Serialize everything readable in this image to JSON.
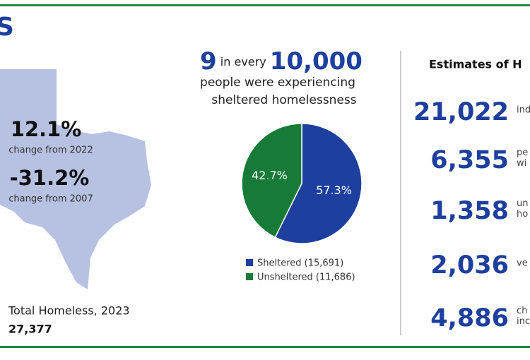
{
  "title": "S",
  "map_stats": [
    {
      "value": "12.1%",
      "label": "change from 2022"
    },
    {
      "value": "-31.2%",
      "label": "change from 2007"
    }
  ],
  "total": {
    "label": "Total Homeless, 2023",
    "value": "27,377"
  },
  "rate": {
    "number": "9",
    "middle": "in every",
    "base": "10,000",
    "line1": "people were experiencing",
    "line2": "sheltered homelessness"
  },
  "chart_data": {
    "type": "pie",
    "categories": [
      "Sheltered (15,691)",
      "Unsheltered (11,686)"
    ],
    "values": [
      57.3,
      42.7
    ],
    "value_labels": [
      "57.3%",
      "42.7%"
    ],
    "colors": [
      "#1d3f9e",
      "#177a36"
    ]
  },
  "estimates": {
    "heading": "Estimates of H",
    "items": [
      {
        "value": "21,022",
        "text": [
          "ind"
        ]
      },
      {
        "value": "6,355",
        "text": [
          "pe",
          "wi"
        ]
      },
      {
        "value": "1,358",
        "text": [
          "un",
          "ho"
        ]
      },
      {
        "value": "2,036",
        "text": [
          "ve"
        ]
      },
      {
        "value": "4,886",
        "text": [
          "ch",
          "inc"
        ]
      }
    ]
  }
}
